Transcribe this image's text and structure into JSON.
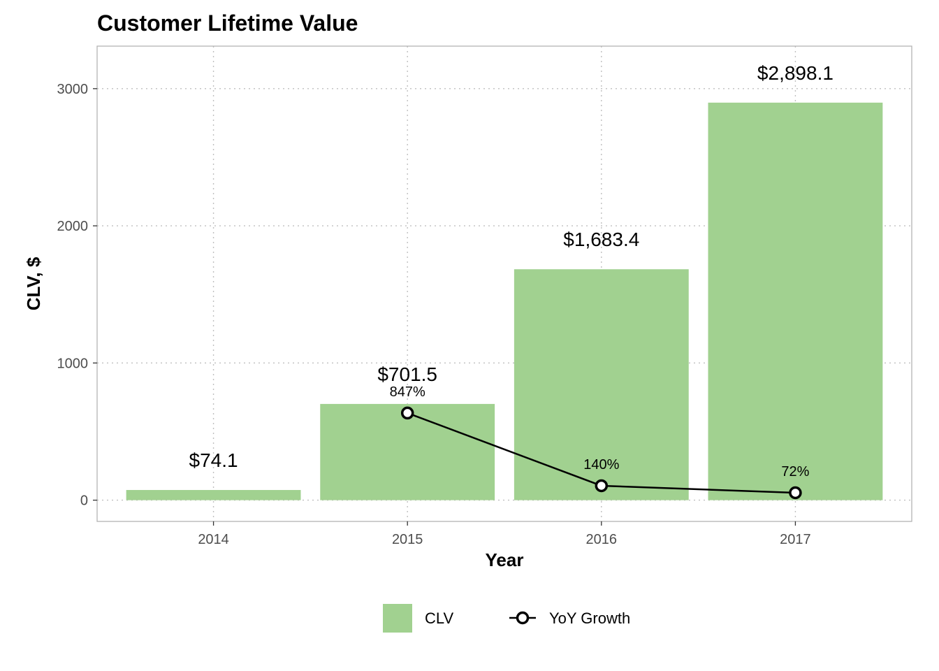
{
  "chart_data": {
    "type": "bar",
    "title": "Customer Lifetime Value",
    "xlabel": "Year",
    "ylabel": "CLV, $",
    "categories": [
      "2014",
      "2015",
      "2016",
      "2017"
    ],
    "ylim": [
      -155,
      3310
    ],
    "yticks": [
      0,
      1000,
      2000,
      3000
    ],
    "grid": true,
    "legend_position": "bottom",
    "series": [
      {
        "name": "CLV",
        "type": "bar",
        "color": "#a1d190",
        "values": [
          74.1,
          701.5,
          1683.4,
          2898.1
        ],
        "labels": [
          "$74.1",
          "$701.5",
          "$1,683.4",
          "$2,898.1"
        ]
      },
      {
        "name": "YoY Growth",
        "type": "line",
        "color": "#000000",
        "x": [
          "2015",
          "2016",
          "2017"
        ],
        "values": [
          847,
          140,
          72
        ],
        "labels": [
          "847%",
          "140%",
          "72%"
        ]
      }
    ]
  }
}
